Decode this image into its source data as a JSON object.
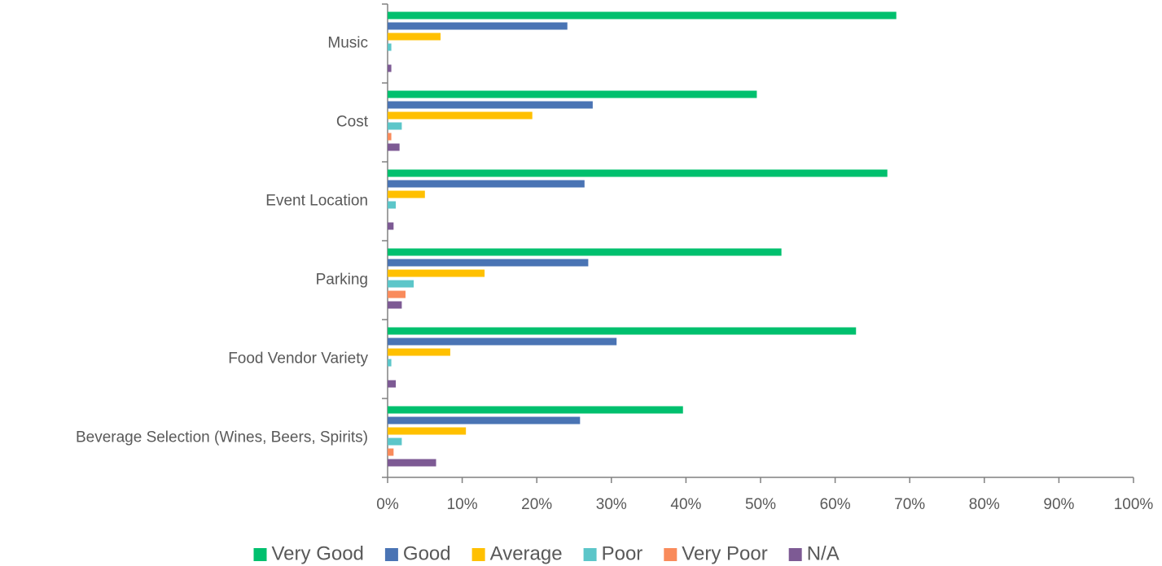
{
  "chart_data": {
    "type": "hbar",
    "categories": [
      "Music",
      "Cost",
      "Event Location",
      "Parking",
      "Food Vendor Variety",
      "Beverage Selection (Wines, Beers, Spirits)"
    ],
    "series": [
      {
        "name": "Very Good",
        "color": "#00c06e",
        "values": [
          68.2,
          49.5,
          67,
          52.8,
          62.8,
          39.6
        ]
      },
      {
        "name": "Good",
        "color": "#4a74b4",
        "values": [
          24.1,
          27.5,
          26.4,
          26.9,
          30.7,
          25.8
        ]
      },
      {
        "name": "Average",
        "color": "#ffc000",
        "values": [
          7.1,
          19.4,
          5,
          13,
          8.4,
          10.5
        ]
      },
      {
        "name": "Poor",
        "color": "#5cc6c9",
        "values": [
          0.5,
          1.9,
          1.1,
          3.5,
          0.5,
          1.9
        ]
      },
      {
        "name": "Very Poor",
        "color": "#f98b5b",
        "values": [
          0,
          0.5,
          0,
          2.4,
          0,
          0.8
        ]
      },
      {
        "name": "N/A",
        "color": "#7d5a94",
        "values": [
          0.5,
          1.6,
          0.8,
          1.9,
          1.1,
          6.5
        ]
      }
    ],
    "xlim": [
      0,
      100
    ],
    "xticks": [
      {
        "value": 0,
        "label": "0%"
      },
      {
        "value": 10,
        "label": "10%"
      },
      {
        "value": 20,
        "label": "20%"
      },
      {
        "value": 30,
        "label": "30%"
      },
      {
        "value": 40,
        "label": "40%"
      },
      {
        "value": 50,
        "label": "50%"
      },
      {
        "value": 60,
        "label": "60%"
      },
      {
        "value": 70,
        "label": "70%"
      },
      {
        "value": 80,
        "label": "80%"
      },
      {
        "value": 90,
        "label": "90%"
      },
      {
        "value": 100,
        "label": "100%"
      }
    ],
    "legend": "bottom"
  }
}
